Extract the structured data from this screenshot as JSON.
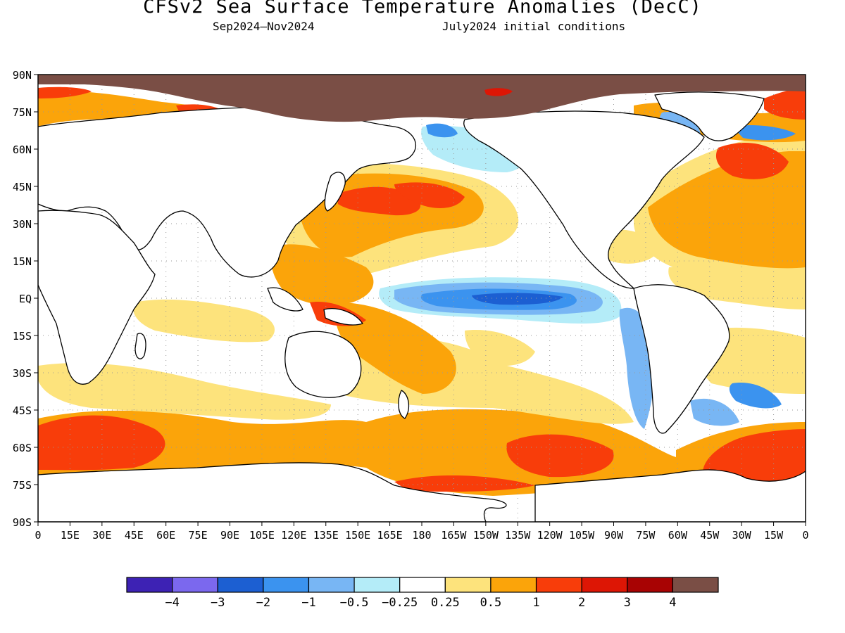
{
  "header": {
    "title": "CFSv2 Sea Surface Temperature Anomalies (DecC)",
    "period": "Sep2024–Nov2024",
    "init": "July2024 initial conditions"
  },
  "axes": {
    "lat_labels": [
      "90N",
      "75N",
      "60N",
      "45N",
      "30N",
      "15N",
      "EQ",
      "15S",
      "30S",
      "45S",
      "60S",
      "75S",
      "90S"
    ],
    "lon_labels": [
      "0",
      "15E",
      "30E",
      "45E",
      "60E",
      "75E",
      "90E",
      "105E",
      "120E",
      "135E",
      "150E",
      "165E",
      "180",
      "165W",
      "150W",
      "135W",
      "120W",
      "105W",
      "90W",
      "75W",
      "60W",
      "45W",
      "30W",
      "15W",
      "0"
    ]
  },
  "colorbar": {
    "colors": [
      "#3d22b4",
      "#7b68ee",
      "#1c5fd2",
      "#3b93ef",
      "#78b6f4",
      "#b4ecf8",
      "#ffffff",
      "#fde37c",
      "#fba40a",
      "#f83d0a",
      "#dd1605",
      "#a80303",
      "#7a4e45"
    ],
    "labels": [
      "−4",
      "−3",
      "−2",
      "−1",
      "−0.5",
      "−0.25",
      "0.25",
      "0.5",
      "1",
      "2",
      "3",
      "4"
    ]
  },
  "palette": {
    "land": "#ffffff",
    "ice": "#7a4e45",
    "coast": "#000000",
    "grid": "#999999"
  }
}
